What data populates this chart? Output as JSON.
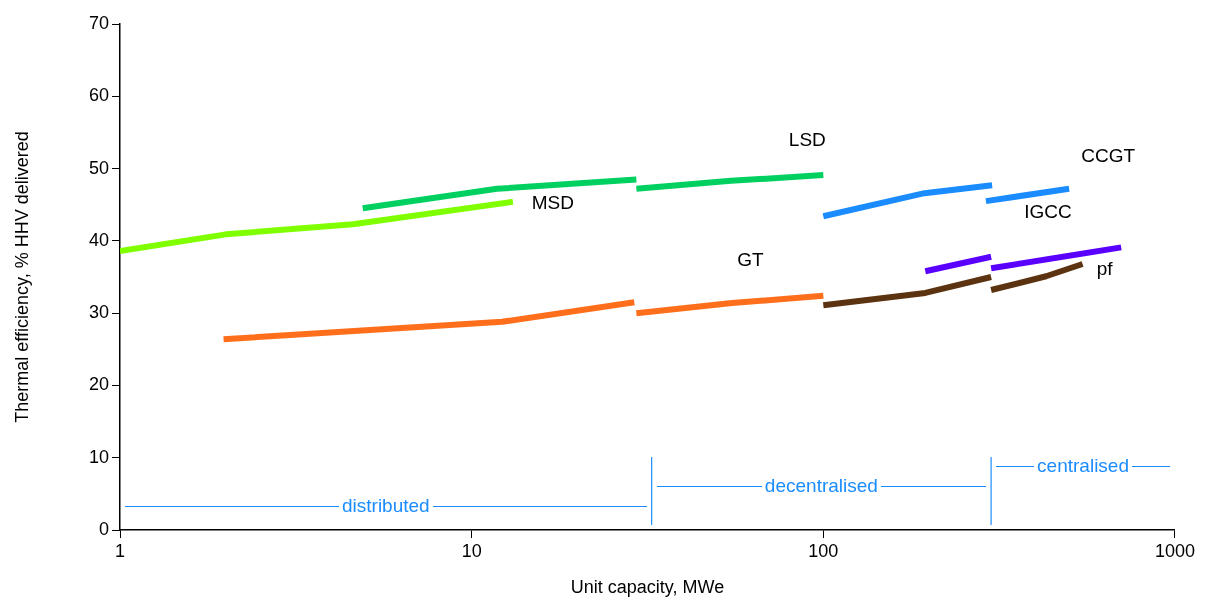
{
  "chart_data": {
    "type": "line",
    "xlabel": "Unit capacity, MWe",
    "ylabel": "Thermal efficiency, % HHV delivered",
    "log": "x",
    "xlim": [
      1,
      1000
    ],
    "xticks": [
      1,
      10,
      100,
      1000
    ],
    "ylim": [
      0,
      70
    ],
    "yticks": [
      0,
      10,
      20,
      30,
      40,
      50,
      60,
      70
    ],
    "grid": false,
    "series": [
      {
        "name": "MSD",
        "color": "#80ff00",
        "x": [
          1,
          2.0,
          4.6,
          13.1
        ],
        "values": [
          38.6,
          40.9,
          42.3,
          45.4
        ]
      },
      {
        "color": "#00d060",
        "x": [
          4.9,
          11.8,
          29.4
        ],
        "values": [
          44.5,
          47.2,
          48.5
        ]
      },
      {
        "name": "LSD",
        "color": "#00d060",
        "x": [
          29.4,
          54.6,
          100
        ],
        "values": [
          47.2,
          48.3,
          49.1
        ]
      },
      {
        "color": "#1a8cff",
        "x": [
          100,
          194,
          302
        ],
        "values": [
          43.4,
          46.6,
          47.7
        ]
      },
      {
        "name": "CCGT",
        "color": "#1a8cff",
        "x": [
          290,
          500
        ],
        "values": [
          45.5,
          47.2
        ]
      },
      {
        "color": "#ff6e1a",
        "x": [
          1.97,
          12.2,
          29
        ],
        "values": [
          26.4,
          28.8,
          31.5
        ]
      },
      {
        "name": "GT",
        "color": "#ff6e1a",
        "x": [
          29.4,
          55,
          100
        ],
        "values": [
          30.0,
          31.4,
          32.4
        ]
      },
      {
        "color": "#5c3310",
        "x": [
          100,
          195,
          300
        ],
        "values": [
          31.1,
          32.8,
          35.0
        ]
      },
      {
        "name": "pf",
        "color": "#5c3310",
        "x": [
          300,
          430,
          546
        ],
        "values": [
          33.2,
          35.1,
          36.8
        ]
      },
      {
        "color": "#5a00ff",
        "x": [
          195,
          300
        ],
        "values": [
          35.8,
          37.8
        ]
      },
      {
        "color": "#5a00ff",
        "x": [
          300,
          703
        ],
        "values": [
          36.2,
          39.1
        ]
      }
    ],
    "ref_lines": [
      {
        "axis": "x",
        "value": 32.5,
        "label": null,
        "color": "#1a8cff"
      },
      {
        "axis": "x",
        "value": 300,
        "label": null,
        "color": "#1a8cff"
      }
    ],
    "annotations": [
      "distributed",
      "decentralised",
      "centralised",
      "IGCC"
    ]
  }
}
